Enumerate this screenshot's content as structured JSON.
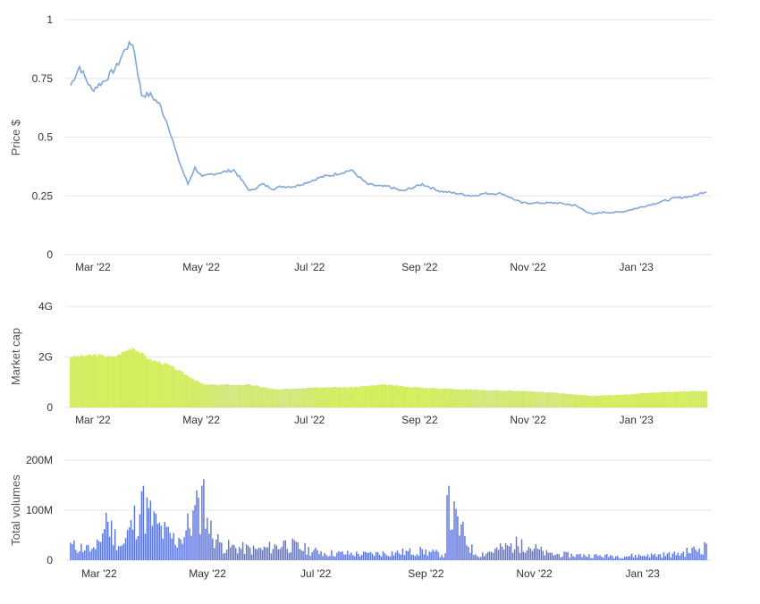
{
  "colors": {
    "price_line": "#7ea7dc",
    "market_cap_bar": "#d7f264",
    "market_cap_bar_edge": "#b9d93e",
    "volume_bar": "#5b74e0",
    "grid": "#e6e6e6",
    "text": "#333333"
  },
  "chart_data": [
    {
      "id": "price",
      "type": "line",
      "ylabel": "Price $",
      "y_ticks": [
        "0",
        "0.25",
        "0.5",
        "0.75",
        "1"
      ],
      "x_ticks": [
        "Mar '22",
        "May '22",
        "Jul '22",
        "Sep '22",
        "Nov '22",
        "Jan '23"
      ],
      "ylim": [
        0,
        1
      ],
      "grid": true,
      "series": [
        {
          "x": [
            "2022-02-24",
            "2022-03-01",
            "2022-03-08",
            "2022-03-15",
            "2022-03-22",
            "2022-03-27",
            "2022-03-31",
            "2022-04-05",
            "2022-04-10",
            "2022-04-15",
            "2022-04-20",
            "2022-04-25",
            "2022-05-01",
            "2022-05-05",
            "2022-05-09",
            "2022-05-13",
            "2022-05-20",
            "2022-05-27",
            "2022-06-05",
            "2022-06-12",
            "2022-06-18",
            "2022-06-23",
            "2022-06-30",
            "2022-07-08",
            "2022-07-15",
            "2022-07-22",
            "2022-08-01",
            "2022-08-10",
            "2022-08-18",
            "2022-08-22",
            "2022-08-30",
            "2022-09-10",
            "2022-09-20",
            "2022-09-30",
            "2022-10-08",
            "2022-10-15",
            "2022-10-25",
            "2022-11-05",
            "2022-11-10",
            "2022-11-15",
            "2022-11-25",
            "2022-12-05",
            "2022-12-15",
            "2022-12-20",
            "2022-12-30",
            "2023-01-10",
            "2023-01-20",
            "2023-01-30",
            "2023-02-10",
            "2023-02-17"
          ],
          "values": [
            0.72,
            0.8,
            0.7,
            0.74,
            0.8,
            0.88,
            0.9,
            0.68,
            0.68,
            0.64,
            0.55,
            0.42,
            0.3,
            0.37,
            0.33,
            0.34,
            0.35,
            0.36,
            0.27,
            0.3,
            0.28,
            0.29,
            0.29,
            0.31,
            0.33,
            0.34,
            0.36,
            0.3,
            0.29,
            0.29,
            0.27,
            0.3,
            0.27,
            0.26,
            0.25,
            0.26,
            0.26,
            0.22,
            0.22,
            0.22,
            0.22,
            0.21,
            0.17,
            0.18,
            0.18,
            0.2,
            0.22,
            0.24,
            0.25,
            0.27
          ]
        }
      ]
    },
    {
      "id": "market_cap",
      "type": "bar",
      "ylabel": "Market cap",
      "y_ticks": [
        "0",
        "2G",
        "4G"
      ],
      "x_ticks": [
        "Mar '22",
        "May '22",
        "Jul '22",
        "Sep '22",
        "Nov '22",
        "Jan '23"
      ],
      "ylim": [
        0,
        4000000000
      ],
      "grid": true,
      "series": [
        {
          "x": [
            "2022-02-24",
            "2022-03-10",
            "2022-03-20",
            "2022-03-31",
            "2022-04-10",
            "2022-04-20",
            "2022-04-30",
            "2022-05-10",
            "2022-05-20",
            "2022-06-05",
            "2022-06-20",
            "2022-07-10",
            "2022-08-01",
            "2022-08-20",
            "2022-09-05",
            "2022-09-20",
            "2022-10-10",
            "2022-11-01",
            "2022-11-20",
            "2022-12-15",
            "2023-01-01",
            "2023-01-20",
            "2023-02-17"
          ],
          "values": [
            2000000000,
            2100000000,
            2000000000,
            2400000000,
            1900000000,
            1700000000,
            1300000000,
            900000000,
            900000000,
            900000000,
            700000000,
            800000000,
            800000000,
            900000000,
            800000000,
            750000000,
            700000000,
            650000000,
            600000000,
            450000000,
            500000000,
            600000000,
            650000000
          ]
        }
      ]
    },
    {
      "id": "volumes",
      "type": "bar",
      "ylabel": "Total volumes",
      "y_ticks": [
        "0",
        "100M",
        "200M"
      ],
      "x_ticks": [
        "Mar '22",
        "May '22",
        "Jul '22",
        "Sep '22",
        "Nov '22",
        "Jan '23"
      ],
      "ylim": [
        0,
        200000000
      ],
      "grid": true,
      "series": [
        {
          "x": [
            "2022-02-24",
            "2022-03-05",
            "2022-03-10",
            "2022-03-16",
            "2022-03-25",
            "2022-03-28",
            "2022-04-05",
            "2022-04-15",
            "2022-04-26",
            "2022-05-07",
            "2022-05-10",
            "2022-05-12",
            "2022-05-20",
            "2022-06-10",
            "2022-06-25",
            "2022-07-15",
            "2022-08-10",
            "2022-09-10",
            "2022-09-23",
            "2022-09-24",
            "2022-10-10",
            "2022-11-05",
            "2022-11-20",
            "2022-12-10",
            "2022-12-25",
            "2023-01-15",
            "2023-02-01",
            "2023-02-17"
          ],
          "values": [
            35000000,
            30000000,
            22000000,
            95000000,
            30000000,
            60000000,
            138000000,
            75000000,
            45000000,
            125000000,
            162000000,
            85000000,
            35000000,
            25000000,
            40000000,
            18000000,
            15000000,
            22000000,
            14000000,
            130000000,
            12000000,
            42000000,
            15000000,
            12000000,
            10000000,
            12000000,
            15000000,
            33000000
          ]
        }
      ]
    }
  ]
}
